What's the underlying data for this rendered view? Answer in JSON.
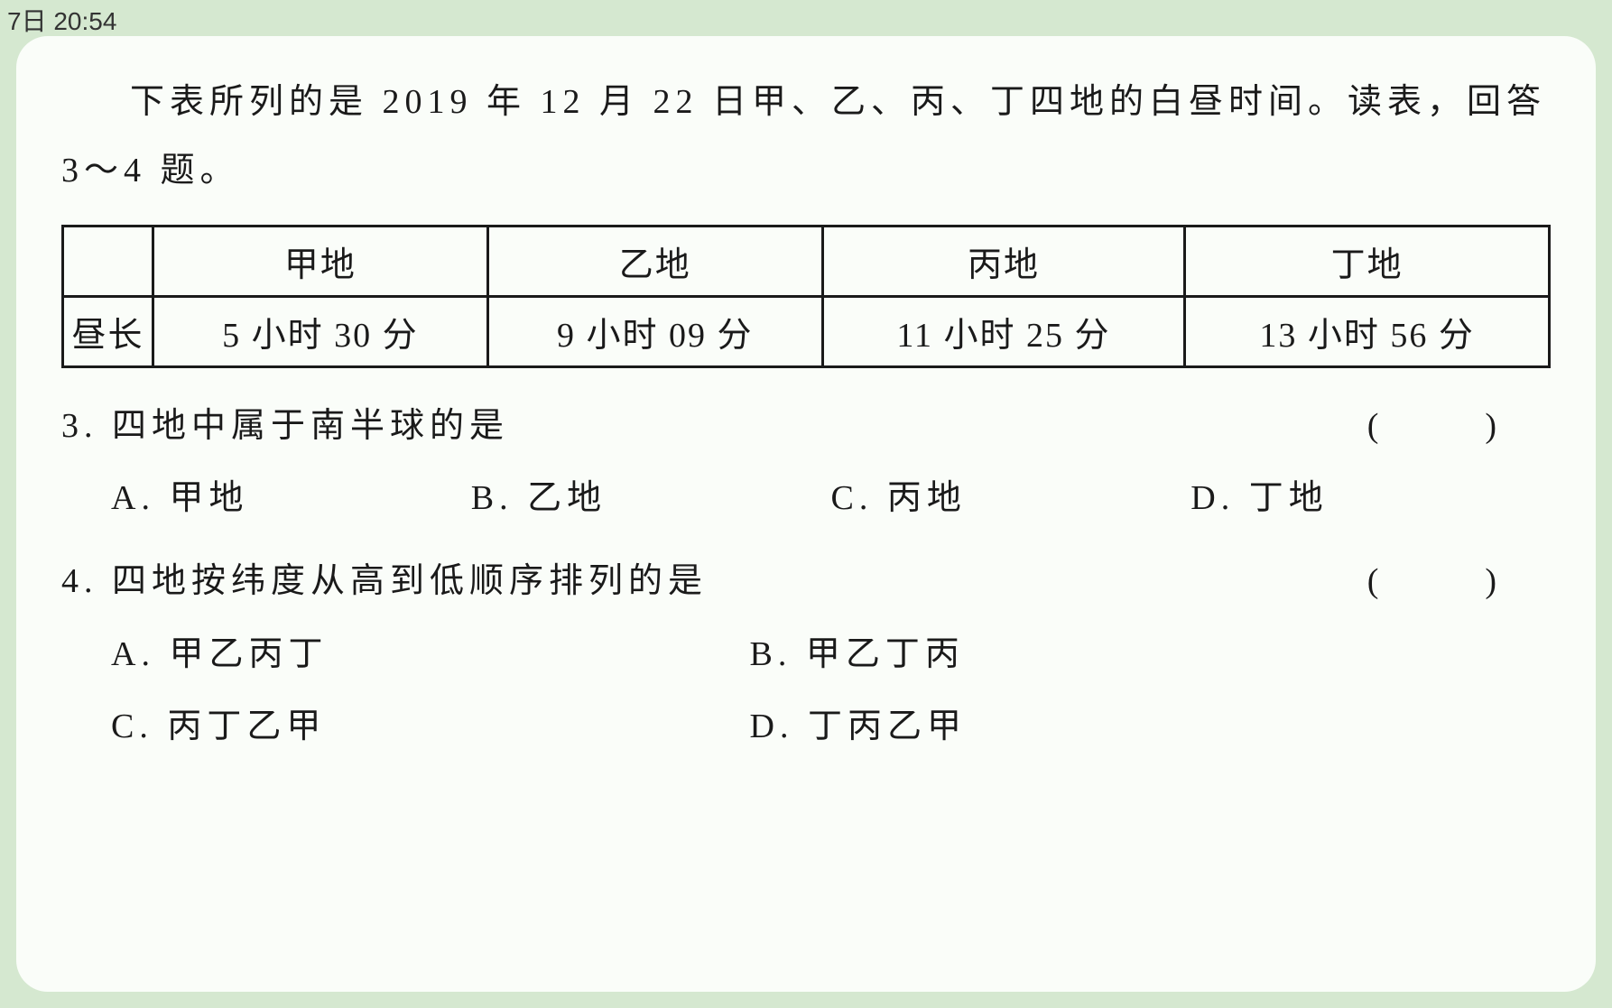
{
  "status_bar": {
    "time": "7日 20:54"
  },
  "document": {
    "intro": "下表所列的是 2019 年 12 月 22 日甲、乙、丙、丁四地的白昼时间。读表，回答 3～4 题。",
    "table": {
      "row_label": "昼长",
      "columns": [
        "甲地",
        "乙地",
        "丙地",
        "丁地"
      ],
      "values": [
        "5 小时 30 分",
        "9 小时 09 分",
        "11 小时 25 分",
        "13 小时 56 分"
      ]
    },
    "questions": [
      {
        "number": "3.",
        "stem": "四地中属于南半球的是",
        "blank": "(　)",
        "layout": "four-col",
        "options": [
          {
            "label": "A.",
            "text": "甲地"
          },
          {
            "label": "B.",
            "text": "乙地"
          },
          {
            "label": "C.",
            "text": "丙地"
          },
          {
            "label": "D.",
            "text": "丁地"
          }
        ]
      },
      {
        "number": "4.",
        "stem": "四地按纬度从高到低顺序排列的是",
        "blank": "(　)",
        "layout": "two-col",
        "options": [
          {
            "label": "A.",
            "text": "甲乙丙丁"
          },
          {
            "label": "B.",
            "text": "甲乙丁丙"
          },
          {
            "label": "C.",
            "text": "丙丁乙甲"
          },
          {
            "label": "D.",
            "text": "丁丙乙甲"
          }
        ]
      }
    ]
  }
}
